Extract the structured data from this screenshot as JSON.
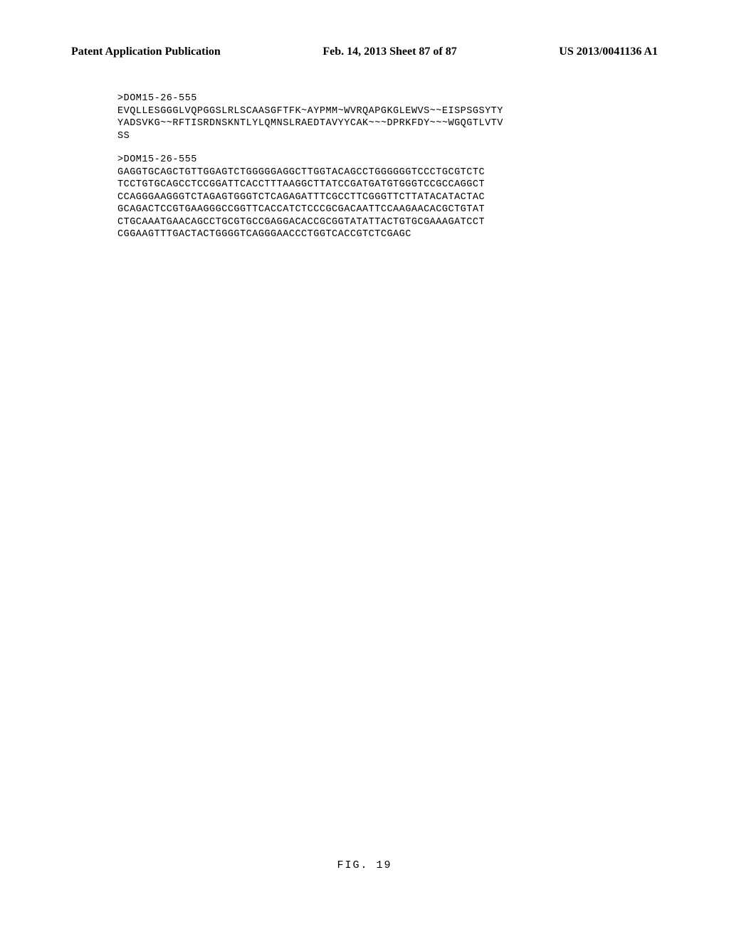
{
  "header": {
    "left": "Patent Application Publication",
    "center": "Feb. 14, 2013  Sheet 87 of 87",
    "right": "US 2013/0041136 A1"
  },
  "sequences": {
    "block1": {
      "header": ">DOM15-26-555",
      "lines": [
        "EVQLLESGGGLVQPGGSLRLSCAASGFTFK~AYPMM~WVRQAPGKGLEWVS~~EISPSGSYTY",
        "YADSVKG~~RFTISRDNSKNTLYLQMNSLRAEDTAVYYCAK~~~DPRKFDY~~~WGQGTLVTV",
        "SS"
      ]
    },
    "block2": {
      "header": ">DOM15-26-555",
      "lines": [
        "GAGGTGCAGCTGTTGGAGTCTGGGGGAGGCTTGGTACAGCCTGGGGGGTCCCTGCGTCTC",
        "TCCTGTGCAGCCTCCGGATTCACCTTTAAGGCTTATCCGATGATGTGGGTCCGCCAGGCT",
        "CCAGGGAAGGGTCTAGAGTGGGTCTCAGAGATTTCGCCTTCGGGTTCTTATACATACTAC",
        "GCAGACTCCGTGAAGGGCCGGTTCACCATCTCCCGCGACAATTCCAAGAACACGCTGTAT",
        "CTGCAAATGAACAGCCTGCGTGCCGAGGACACCGCGGTATATTACTGTGCGAAAGATCCT",
        "CGGAAGTTTGACTACTGGGGTCAGGGAACCCTGGTCACCGTCTCGAGC"
      ]
    }
  },
  "figureLabel": "FIG.  19"
}
